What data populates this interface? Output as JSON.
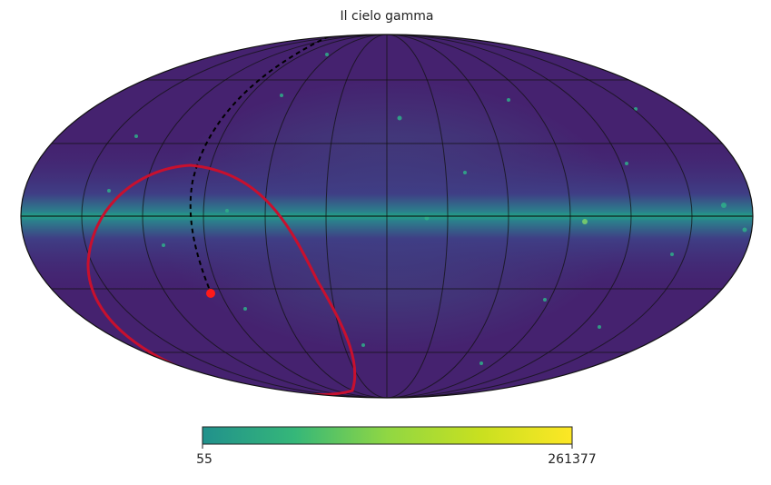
{
  "title": "Il cielo gamma",
  "colorbar": {
    "min": 55,
    "max": 261377
  }
}
